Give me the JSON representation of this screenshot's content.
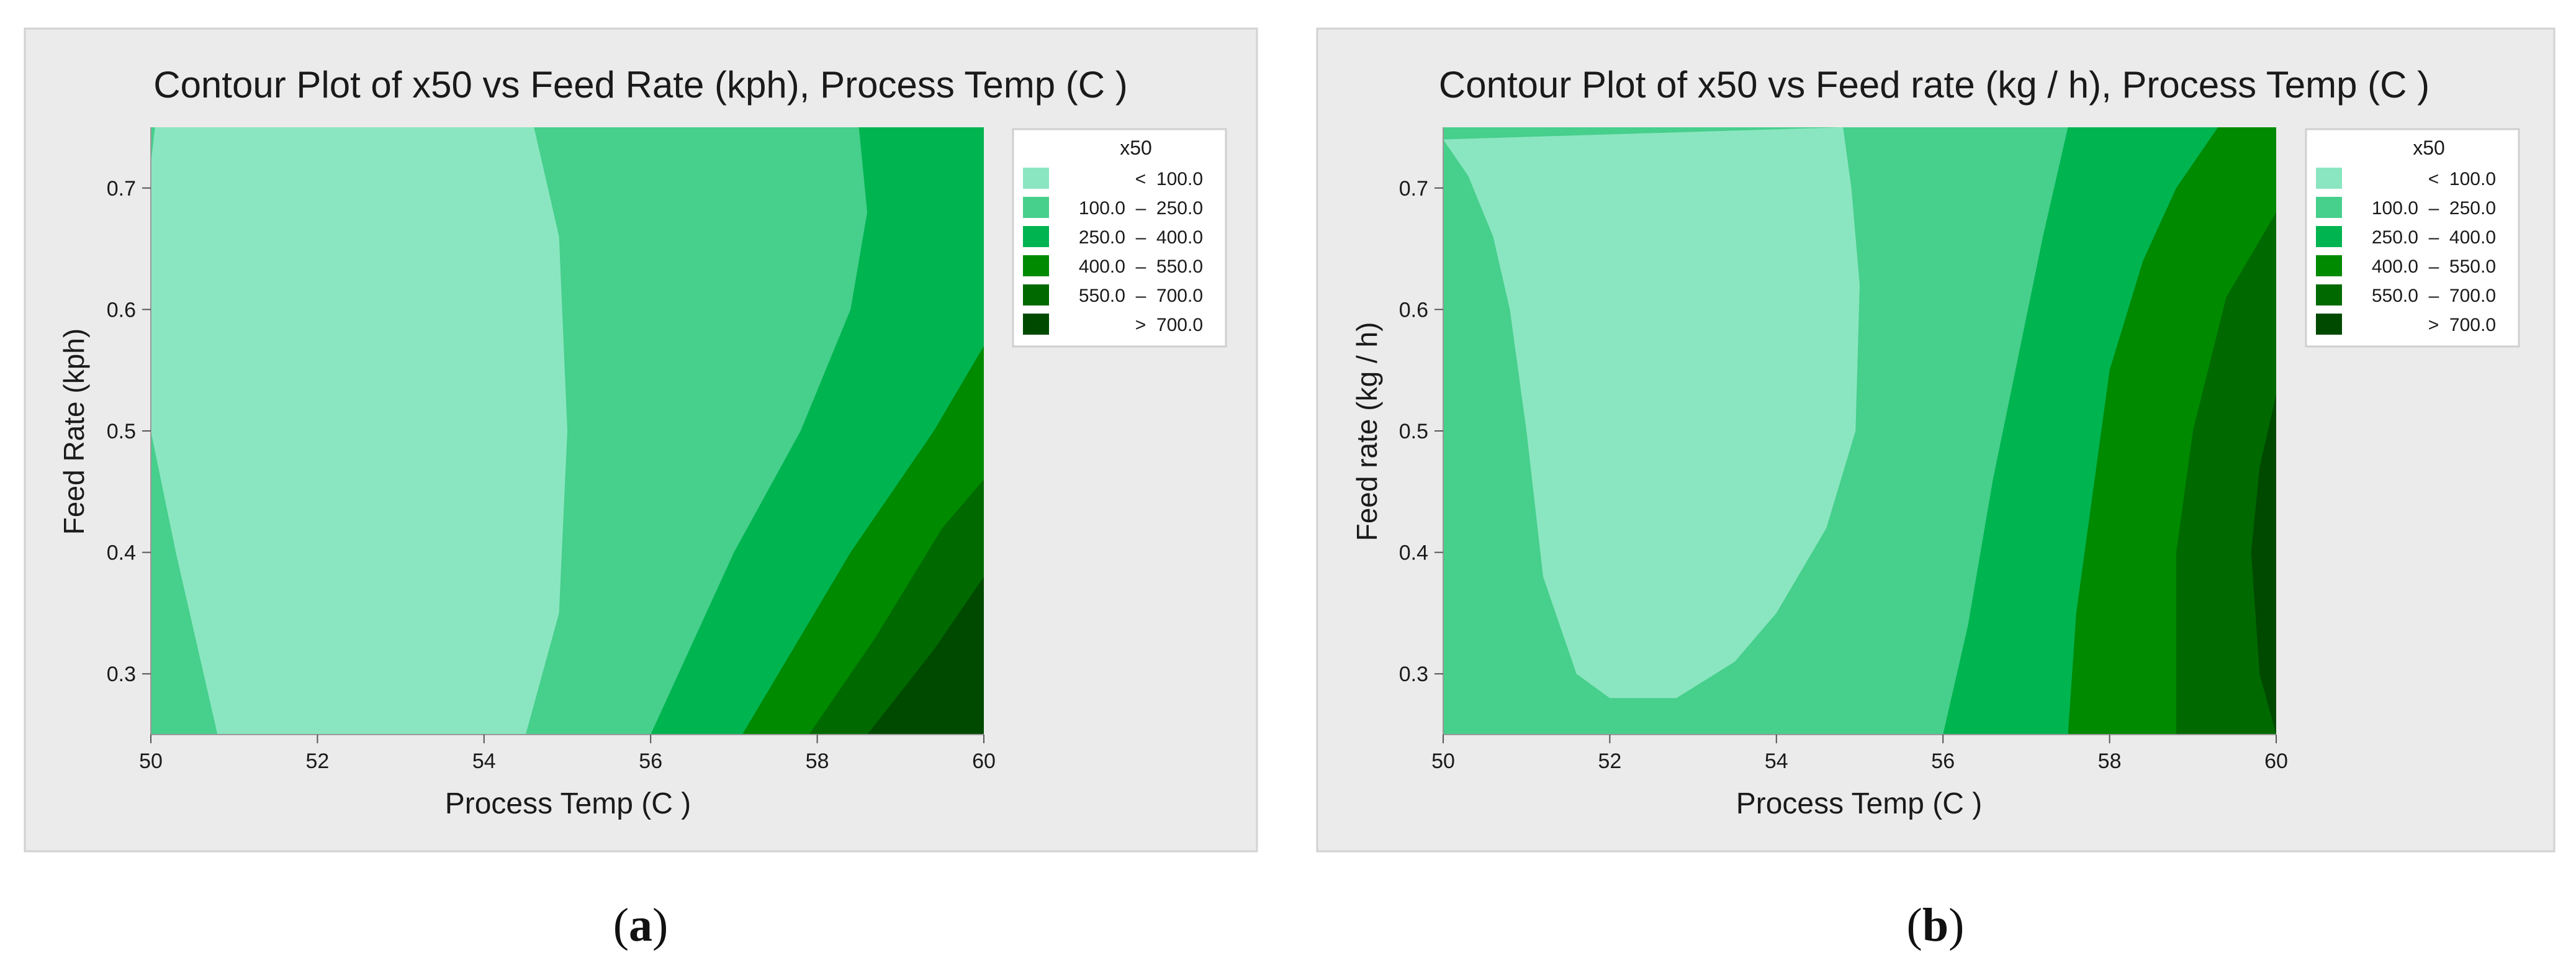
{
  "colors": {
    "band1": "#8ae6c0",
    "band2": "#47cf8c",
    "band3": "#00b450",
    "band4": "#008a00",
    "band5": "#006a00",
    "band6": "#004a00",
    "panel_bg": "#ebebeb",
    "panel_border": "#d2d2d2"
  },
  "legend_bands": [
    "<  100.0",
    "100.0  –  250.0",
    "250.0  –  400.0",
    "400.0  –  550.0",
    "550.0  –  700.0",
    ">  700.0"
  ],
  "chart_data": [
    {
      "type": "contour",
      "panel_label": "a",
      "title": "Contour Plot of x50 vs Feed Rate (kph), Process Temp (C )",
      "xlabel": "Process Temp (C )",
      "ylabel": "Feed Rate (kph)",
      "legend_title": "x50",
      "xlim": [
        50,
        60
      ],
      "ylim": [
        0.25,
        0.75
      ],
      "xticks": [
        "50",
        "52",
        "54",
        "56",
        "58",
        "60"
      ],
      "yticks": [
        "0.3",
        "0.4",
        "0.5",
        "0.6",
        "0.7"
      ],
      "levels": [
        100,
        250,
        400,
        550,
        700
      ],
      "boundaries": [
        {
          "level": 100,
          "points": [
            [
              50.05,
              0.75
            ],
            [
              50.0,
              0.72
            ],
            [
              50.0,
              0.5
            ],
            [
              50.3,
              0.4
            ],
            [
              50.8,
              0.25
            ]
          ],
          "points2": [
            [
              54.6,
              0.75
            ],
            [
              54.9,
              0.66
            ],
            [
              55.0,
              0.5
            ],
            [
              54.9,
              0.35
            ],
            [
              54.5,
              0.25
            ]
          ]
        },
        {
          "level": 250,
          "points": [
            [
              58.5,
              0.75
            ],
            [
              58.6,
              0.68
            ],
            [
              58.4,
              0.6
            ],
            [
              57.8,
              0.5
            ],
            [
              57.0,
              0.4
            ],
            [
              56.0,
              0.25
            ]
          ]
        },
        {
          "level": 400,
          "points": [
            [
              60.0,
              0.57
            ],
            [
              59.4,
              0.5
            ],
            [
              58.4,
              0.4
            ],
            [
              57.1,
              0.25
            ]
          ]
        },
        {
          "level": 550,
          "points": [
            [
              60.0,
              0.46
            ],
            [
              59.5,
              0.42
            ],
            [
              58.7,
              0.33
            ],
            [
              57.9,
              0.25
            ]
          ]
        },
        {
          "level": 700,
          "points": [
            [
              60.0,
              0.38
            ],
            [
              59.4,
              0.32
            ],
            [
              58.6,
              0.25
            ]
          ]
        }
      ]
    },
    {
      "type": "contour",
      "panel_label": "b",
      "title": "Contour Plot of x50 vs Feed rate (kg / h), Process Temp (C )",
      "xlabel": "Process Temp (C )",
      "ylabel": "Feed rate (kg / h)",
      "legend_title": "x50",
      "xlim": [
        50,
        60
      ],
      "ylim": [
        0.25,
        0.75
      ],
      "xticks": [
        "50",
        "52",
        "54",
        "56",
        "58",
        "60"
      ],
      "yticks": [
        "0.3",
        "0.4",
        "0.5",
        "0.6",
        "0.7"
      ],
      "levels": [
        100,
        250,
        400,
        550,
        700
      ],
      "boundaries": [
        {
          "level": 100,
          "points": [
            [
              50.0,
              0.74
            ],
            [
              50.3,
              0.71
            ],
            [
              50.6,
              0.66
            ],
            [
              50.8,
              0.6
            ],
            [
              51.0,
              0.5
            ],
            [
              51.2,
              0.38
            ],
            [
              51.6,
              0.3
            ],
            [
              52.0,
              0.28
            ],
            [
              52.8,
              0.28
            ],
            [
              53.5,
              0.31
            ],
            [
              54.0,
              0.35
            ],
            [
              54.6,
              0.42
            ],
            [
              54.95,
              0.5
            ],
            [
              55.0,
              0.62
            ],
            [
              54.9,
              0.7
            ],
            [
              54.8,
              0.75
            ]
          ]
        },
        {
          "level": 250,
          "points": [
            [
              57.5,
              0.75
            ],
            [
              57.2,
              0.66
            ],
            [
              56.9,
              0.56
            ],
            [
              56.6,
              0.46
            ],
            [
              56.3,
              0.34
            ],
            [
              56.0,
              0.25
            ]
          ]
        },
        {
          "level": 400,
          "points": [
            [
              59.3,
              0.75
            ],
            [
              58.8,
              0.7
            ],
            [
              58.4,
              0.64
            ],
            [
              58.0,
              0.55
            ],
            [
              57.8,
              0.45
            ],
            [
              57.6,
              0.35
            ],
            [
              57.5,
              0.25
            ]
          ]
        },
        {
          "level": 550,
          "points": [
            [
              60.0,
              0.68
            ],
            [
              59.4,
              0.61
            ],
            [
              59.0,
              0.5
            ],
            [
              58.8,
              0.4
            ],
            [
              58.8,
              0.25
            ]
          ]
        },
        {
          "level": 700,
          "points": [
            [
              60.0,
              0.53
            ],
            [
              59.8,
              0.47
            ],
            [
              59.7,
              0.4
            ],
            [
              59.8,
              0.3
            ],
            [
              60.0,
              0.25
            ]
          ]
        }
      ]
    }
  ]
}
